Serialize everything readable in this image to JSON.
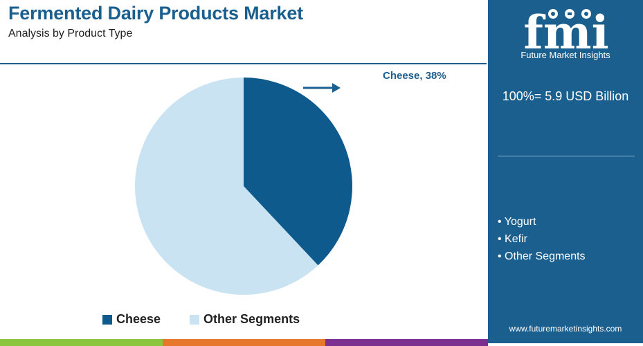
{
  "title": "Fermented Dairy Products Market",
  "subtitle": "Analysis by Product Type",
  "chart_data": {
    "type": "pie",
    "slices": [
      {
        "label": "Cheese",
        "value": 38,
        "color": "#0f5a8c"
      },
      {
        "label": "Other Segments",
        "value": 62,
        "color": "#c9e3f2"
      }
    ],
    "callout": "Cheese, 38%",
    "legend": [
      "Cheese",
      "Other Segments"
    ],
    "legend_position": "bottom"
  },
  "side_panel": {
    "logo_text": "fmi",
    "tagline": "Future Market Insights",
    "total": "100%= 5.9 USD Billion",
    "other_segments": [
      "• Yogurt",
      "• Kefir",
      "• Other Segments"
    ],
    "website": "www.futuremarketinsights.com"
  },
  "colors": {
    "brand": "#1b5f8f",
    "footer_segments": [
      "#8cc63f",
      "#e8772e",
      "#7b2f8f"
    ]
  }
}
